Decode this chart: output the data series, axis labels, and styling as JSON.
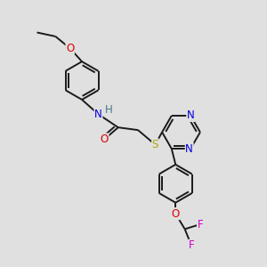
{
  "background_color": "#e0e0e0",
  "bond_color": "#1a1a1a",
  "atom_colors": {
    "N": "#0000dd",
    "O": "#dd0000",
    "S": "#aaaa00",
    "F": "#cc00cc",
    "H": "#447788",
    "C": "#1a1a1a"
  },
  "lw": 1.4,
  "fs": 8.5
}
